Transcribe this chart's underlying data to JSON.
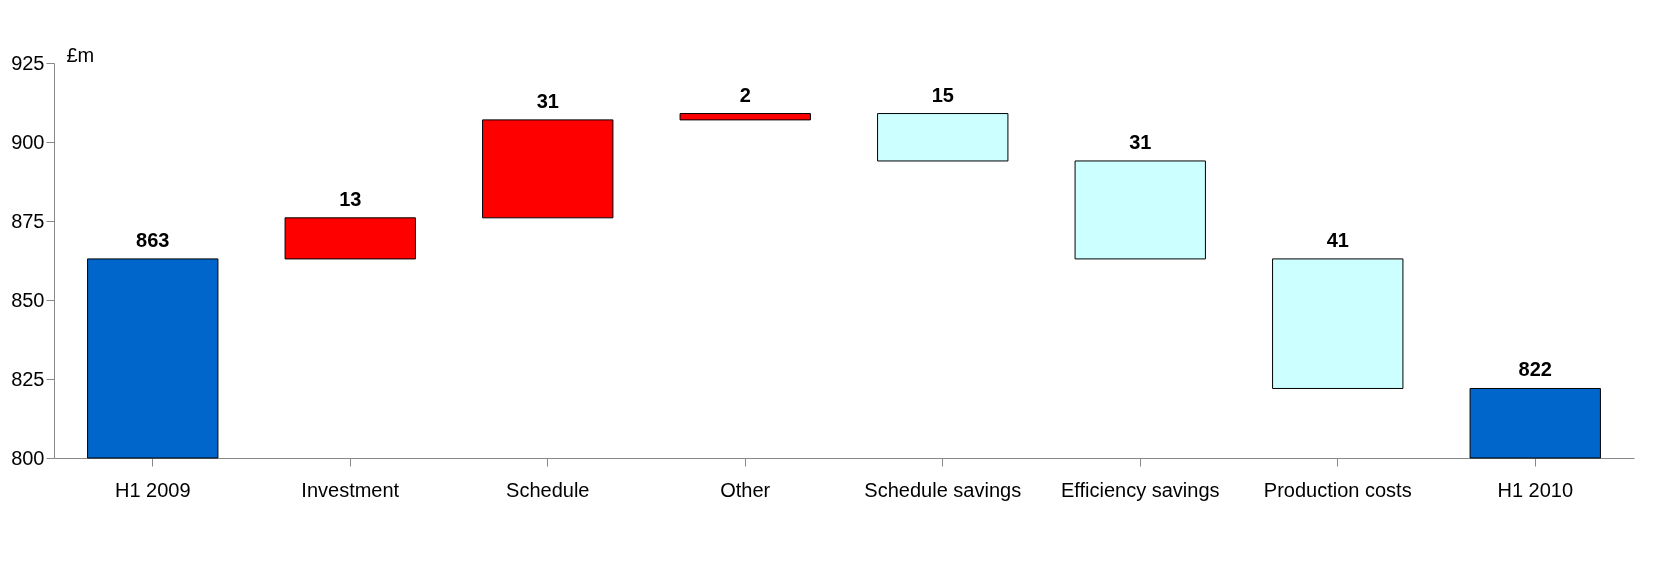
{
  "chart_data": {
    "type": "bar",
    "ylabel": "£m",
    "categories": [
      "H1 2009",
      "Investment",
      "Schedule",
      "Other",
      "Schedule savings",
      "Efficiency savings",
      "Production costs",
      "H1 2010"
    ],
    "values": [
      863,
      13,
      31,
      2,
      15,
      31,
      41,
      822
    ],
    "base": [
      null,
      863,
      876,
      907,
      894,
      863,
      822,
      null
    ],
    "colors": [
      "#0066cc",
      "#ff0000",
      "#ff0000",
      "#ff0000",
      "#ccffff",
      "#ccffff",
      "#ccffff",
      "#0066cc"
    ],
    "ylim": [
      800,
      925
    ],
    "yticks": [
      800,
      825,
      850,
      875,
      900,
      925
    ],
    "grid": false,
    "data_labels": true
  }
}
